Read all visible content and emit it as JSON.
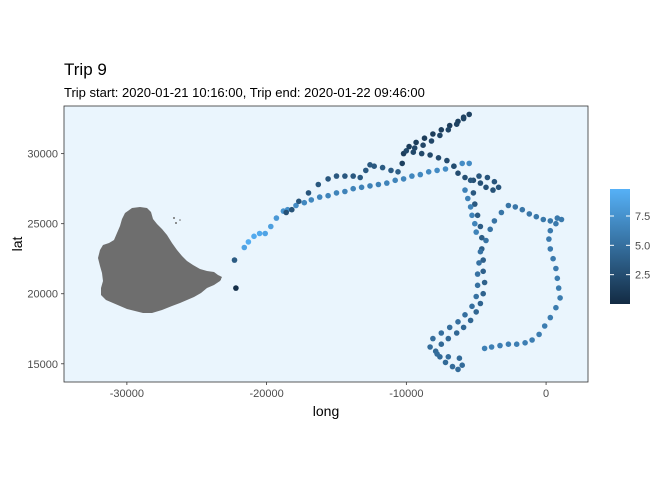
{
  "chart_data": {
    "type": "scatter",
    "title": "Trip 9",
    "subtitle": "Trip start: 2020-01-21 10:16:00, Trip end: 2020-01-22 09:46:00",
    "xlabel": "long",
    "ylabel": "lat",
    "xlim": [
      -34500,
      3000
    ],
    "ylim": [
      13700,
      33400
    ],
    "x_ticks": [
      -30000,
      -20000,
      -10000,
      0
    ],
    "x_tick_labels": [
      "-30000",
      "-20000",
      "-10000",
      "0"
    ],
    "y_ticks": [
      15000,
      20000,
      25000,
      30000
    ],
    "y_tick_labels": [
      "15000",
      "20000",
      "25000",
      "30000"
    ],
    "grid": false,
    "panel_background": "#eaf5fd",
    "land_color": "#6e6e6e",
    "legend": {
      "position": "right",
      "type": "colorbar",
      "range": [
        0,
        9.8
      ],
      "ticks": [
        2.5,
        5.0,
        7.5
      ],
      "tick_labels": [
        "2.5",
        "5.0",
        "7.5"
      ],
      "color_low": "#132b43",
      "color_high": "#56b1f7"
    },
    "series": [
      {
        "points": [
          [
            -22200,
            20400,
            0.3
          ],
          [
            -22300,
            22400,
            3.5
          ],
          [
            -21600,
            23300,
            8.8
          ],
          [
            -21300,
            23700,
            9.5
          ],
          [
            -20900,
            24100,
            9.3
          ],
          [
            -20500,
            24300,
            9.2
          ],
          [
            -20100,
            24300,
            8.8
          ],
          [
            -19700,
            24800,
            8.5
          ],
          [
            -19300,
            25400,
            8.0
          ],
          [
            -18800,
            25900,
            7.5
          ],
          [
            -18500,
            26000,
            7.3
          ],
          [
            -17900,
            26300,
            7.0
          ],
          [
            -17300,
            26500,
            6.8
          ],
          [
            -16800,
            26700,
            6.7
          ],
          [
            -16200,
            26900,
            6.6
          ],
          [
            -15600,
            27000,
            6.5
          ],
          [
            -15000,
            27200,
            6.5
          ],
          [
            -14400,
            27300,
            6.4
          ],
          [
            -13800,
            27500,
            6.4
          ],
          [
            -13200,
            27600,
            6.3
          ],
          [
            -12600,
            27700,
            6.3
          ],
          [
            -12000,
            27800,
            6.3
          ],
          [
            -11400,
            27900,
            6.4
          ],
          [
            -10800,
            28100,
            6.5
          ],
          [
            -10200,
            28200,
            6.6
          ],
          [
            -9600,
            28400,
            6.7
          ],
          [
            -9000,
            28500,
            6.8
          ],
          [
            -8400,
            28700,
            6.9
          ],
          [
            -7800,
            28800,
            7.0
          ],
          [
            -7200,
            28900,
            7.0
          ],
          [
            -6600,
            29100,
            7.1
          ],
          [
            -6000,
            29300,
            7.1
          ],
          [
            -5500,
            29300,
            7.0
          ],
          [
            -18600,
            25800,
            2.8
          ],
          [
            -18200,
            26000,
            2.9
          ],
          [
            -17700,
            26600,
            3.0
          ],
          [
            -17000,
            27200,
            3.1
          ],
          [
            -16300,
            27800,
            3.2
          ],
          [
            -15600,
            28200,
            3.2
          ],
          [
            -15000,
            28400,
            3.3
          ],
          [
            -14400,
            28400,
            3.3
          ],
          [
            -13800,
            28400,
            3.3
          ],
          [
            -13300,
            28300,
            3.4
          ],
          [
            -12900,
            28800,
            3.4
          ],
          [
            -12600,
            29200,
            3.4
          ],
          [
            -12300,
            29100,
            3.4
          ],
          [
            -11700,
            29000,
            3.5
          ],
          [
            -11100,
            28800,
            3.6
          ],
          [
            -10600,
            28700,
            3.7
          ],
          [
            -10300,
            29300,
            1.5
          ],
          [
            -10200,
            30000,
            1.4
          ],
          [
            -9800,
            30500,
            1.3
          ],
          [
            -9300,
            30800,
            1.3
          ],
          [
            -8700,
            31100,
            1.3
          ],
          [
            -8100,
            31400,
            1.3
          ],
          [
            -7500,
            31700,
            1.4
          ],
          [
            -6900,
            32000,
            1.4
          ],
          [
            -6300,
            32300,
            1.5
          ],
          [
            -5900,
            32600,
            1.6
          ],
          [
            -5500,
            32800,
            1.7
          ],
          [
            -5900,
            32500,
            1.8
          ],
          [
            -6400,
            32100,
            1.8
          ],
          [
            -7000,
            31700,
            1.9
          ],
          [
            -7600,
            31300,
            1.9
          ],
          [
            -8200,
            30900,
            2.0
          ],
          [
            -8800,
            30600,
            2.0
          ],
          [
            -9400,
            30400,
            2.0
          ],
          [
            -10000,
            30200,
            2.1
          ],
          [
            -9500,
            30100,
            2.1
          ],
          [
            -8900,
            30000,
            2.2
          ],
          [
            -8300,
            29900,
            2.2
          ],
          [
            -7700,
            29700,
            2.3
          ],
          [
            -7100,
            29500,
            2.3
          ],
          [
            -6600,
            29100,
            2.4
          ],
          [
            -6300,
            28600,
            2.5
          ],
          [
            -5800,
            28300,
            2.6
          ],
          [
            -5200,
            28100,
            2.6
          ],
          [
            -4700,
            27900,
            2.7
          ],
          [
            -4300,
            27600,
            2.8
          ],
          [
            -3800,
            27400,
            2.9
          ],
          [
            -3400,
            27600,
            3.0
          ],
          [
            -3700,
            28000,
            3.1
          ],
          [
            -4200,
            28300,
            3.1
          ],
          [
            -4800,
            28400,
            3.2
          ],
          [
            -5400,
            28100,
            3.2
          ],
          [
            -5200,
            27200,
            3.3
          ],
          [
            -5100,
            26400,
            3.4
          ],
          [
            -4900,
            25600,
            3.5
          ],
          [
            -4700,
            24800,
            3.6
          ],
          [
            -4600,
            24000,
            3.7
          ],
          [
            -4600,
            23200,
            3.8
          ],
          [
            -4500,
            22400,
            3.9
          ],
          [
            -4500,
            21600,
            3.9
          ],
          [
            -4400,
            20800,
            4.0
          ],
          [
            -4500,
            20000,
            4.1
          ],
          [
            -4700,
            19300,
            4.2
          ],
          [
            -5000,
            18700,
            4.3
          ],
          [
            -5400,
            18100,
            4.3
          ],
          [
            -5900,
            17600,
            4.4
          ],
          [
            -6400,
            17200,
            4.4
          ],
          [
            -7000,
            16800,
            4.5
          ],
          [
            -7500,
            16400,
            4.5
          ],
          [
            -7900,
            15900,
            4.6
          ],
          [
            -7600,
            15500,
            4.6
          ],
          [
            -7200,
            15100,
            4.6
          ],
          [
            -6700,
            14800,
            4.7
          ],
          [
            -6300,
            14600,
            4.7
          ],
          [
            -6000,
            14900,
            4.7
          ],
          [
            -6200,
            15400,
            4.7
          ],
          [
            -7000,
            15500,
            4.8
          ],
          [
            -7800,
            15700,
            4.8
          ],
          [
            -8300,
            16200,
            4.8
          ],
          [
            -8100,
            16800,
            4.9
          ],
          [
            -7500,
            17200,
            4.9
          ],
          [
            -6900,
            17600,
            4.9
          ],
          [
            -6300,
            18000,
            5.0
          ],
          [
            -5800,
            18500,
            5.0
          ],
          [
            -5300,
            19100,
            5.0
          ],
          [
            -5000,
            19800,
            5.1
          ],
          [
            -4900,
            20600,
            5.1
          ],
          [
            -4900,
            21400,
            5.2
          ],
          [
            -4800,
            22200,
            5.2
          ],
          [
            -4700,
            23000,
            5.2
          ],
          [
            -4300,
            23800,
            5.3
          ],
          [
            -4000,
            24600,
            5.3
          ],
          [
            -3700,
            25200,
            5.3
          ],
          [
            -3200,
            25800,
            5.4
          ],
          [
            -2700,
            26300,
            5.4
          ],
          [
            -2200,
            26200,
            5.5
          ],
          [
            -1700,
            26000,
            5.5
          ],
          [
            -1200,
            25700,
            5.5
          ],
          [
            -700,
            25500,
            5.6
          ],
          [
            -200,
            25300,
            5.6
          ],
          [
            300,
            25200,
            5.6
          ],
          [
            800,
            25400,
            5.7
          ],
          [
            1100,
            25300,
            5.7
          ],
          [
            700,
            25000,
            5.7
          ],
          [
            300,
            24500,
            5.7
          ],
          [
            200,
            23900,
            5.8
          ],
          [
            300,
            23200,
            5.8
          ],
          [
            500,
            22500,
            5.8
          ],
          [
            700,
            21800,
            5.8
          ],
          [
            800,
            21100,
            5.9
          ],
          [
            900,
            20400,
            5.9
          ],
          [
            1000,
            19700,
            5.9
          ],
          [
            700,
            19000,
            5.9
          ],
          [
            300,
            18300,
            6.0
          ],
          [
            -100,
            17700,
            6.0
          ],
          [
            -500,
            17100,
            6.0
          ],
          [
            -1000,
            16700,
            6.0
          ],
          [
            -1500,
            16500,
            6.1
          ],
          [
            -2100,
            16400,
            6.1
          ],
          [
            -2700,
            16400,
            6.1
          ],
          [
            -3300,
            16300,
            6.1
          ],
          [
            -3900,
            16200,
            6.2
          ],
          [
            -4400,
            16100,
            6.2
          ],
          [
            -5800,
            27400,
            6.3
          ],
          [
            -5600,
            26800,
            6.3
          ],
          [
            -5400,
            26200,
            6.4
          ],
          [
            -5300,
            25600,
            6.4
          ],
          [
            -5100,
            25000,
            6.4
          ],
          [
            -5000,
            24400,
            6.4
          ]
        ]
      }
    ]
  }
}
